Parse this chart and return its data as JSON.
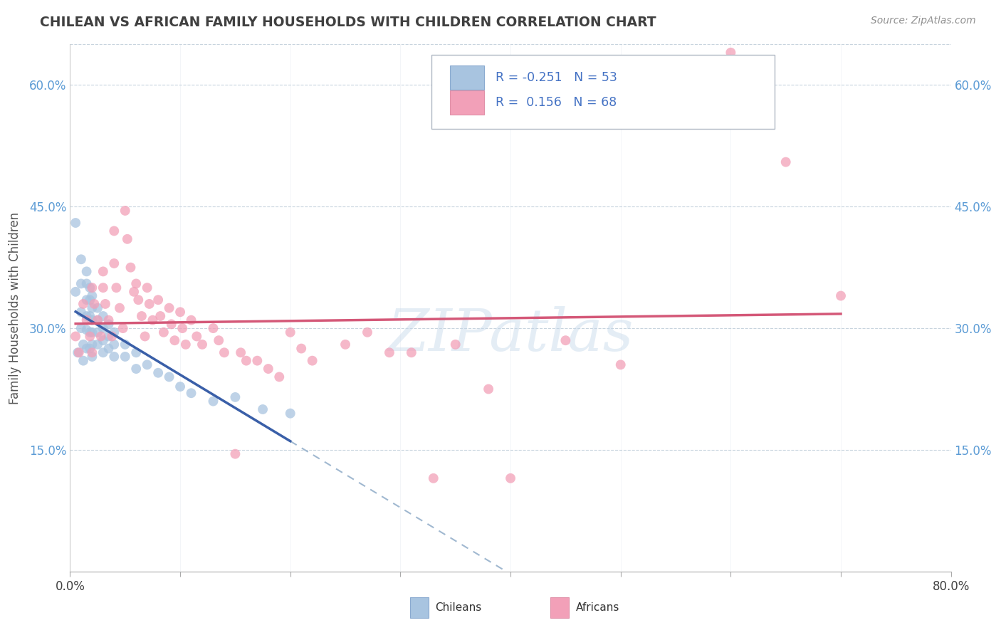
{
  "title": "CHILEAN VS AFRICAN FAMILY HOUSEHOLDS WITH CHILDREN CORRELATION CHART",
  "source": "Source: ZipAtlas.com",
  "ylabel": "Family Households with Children",
  "xlim": [
    0.0,
    0.8
  ],
  "ylim": [
    0.0,
    0.65
  ],
  "ytick_positions": [
    0.15,
    0.3,
    0.45,
    0.6
  ],
  "ytick_labels": [
    "15.0%",
    "30.0%",
    "45.0%",
    "60.0%"
  ],
  "watermark": "ZIPatlas",
  "chilean_color": "#a8c4e0",
  "african_color": "#f2a0b8",
  "chilean_line_color": "#3a5fa8",
  "african_line_color": "#d45878",
  "dashed_line_color": "#a0b8d0",
  "background_color": "#ffffff",
  "grid_color": "#c8d4de",
  "title_color": "#404040",
  "source_color": "#909090",
  "scatter_alpha": 0.75,
  "scatter_size": 100,
  "chilean_x": [
    0.005,
    0.005,
    0.007,
    0.01,
    0.01,
    0.01,
    0.01,
    0.012,
    0.012,
    0.015,
    0.015,
    0.015,
    0.015,
    0.015,
    0.015,
    0.018,
    0.018,
    0.018,
    0.018,
    0.018,
    0.02,
    0.02,
    0.02,
    0.02,
    0.02,
    0.02,
    0.025,
    0.025,
    0.025,
    0.025,
    0.03,
    0.03,
    0.03,
    0.03,
    0.035,
    0.035,
    0.035,
    0.04,
    0.04,
    0.04,
    0.05,
    0.05,
    0.06,
    0.06,
    0.07,
    0.08,
    0.09,
    0.1,
    0.11,
    0.13,
    0.15,
    0.175,
    0.2
  ],
  "chilean_y": [
    0.43,
    0.345,
    0.27,
    0.385,
    0.355,
    0.32,
    0.3,
    0.28,
    0.26,
    0.37,
    0.355,
    0.335,
    0.315,
    0.298,
    0.275,
    0.35,
    0.335,
    0.315,
    0.295,
    0.275,
    0.34,
    0.325,
    0.31,
    0.295,
    0.28,
    0.265,
    0.325,
    0.31,
    0.295,
    0.28,
    0.315,
    0.3,
    0.285,
    0.27,
    0.305,
    0.29,
    0.275,
    0.295,
    0.28,
    0.265,
    0.28,
    0.265,
    0.27,
    0.25,
    0.255,
    0.245,
    0.24,
    0.228,
    0.22,
    0.21,
    0.215,
    0.2,
    0.195
  ],
  "african_x": [
    0.005,
    0.008,
    0.012,
    0.015,
    0.018,
    0.02,
    0.02,
    0.022,
    0.025,
    0.028,
    0.03,
    0.03,
    0.032,
    0.035,
    0.038,
    0.04,
    0.04,
    0.042,
    0.045,
    0.048,
    0.05,
    0.052,
    0.055,
    0.058,
    0.06,
    0.062,
    0.065,
    0.068,
    0.07,
    0.072,
    0.075,
    0.08,
    0.082,
    0.085,
    0.09,
    0.092,
    0.095,
    0.1,
    0.102,
    0.105,
    0.11,
    0.115,
    0.12,
    0.13,
    0.135,
    0.14,
    0.15,
    0.155,
    0.16,
    0.17,
    0.18,
    0.19,
    0.2,
    0.21,
    0.22,
    0.25,
    0.27,
    0.29,
    0.31,
    0.33,
    0.35,
    0.38,
    0.4,
    0.45,
    0.5,
    0.6,
    0.65,
    0.7
  ],
  "african_y": [
    0.29,
    0.27,
    0.33,
    0.31,
    0.29,
    0.27,
    0.35,
    0.33,
    0.31,
    0.29,
    0.37,
    0.35,
    0.33,
    0.31,
    0.29,
    0.42,
    0.38,
    0.35,
    0.325,
    0.3,
    0.445,
    0.41,
    0.375,
    0.345,
    0.355,
    0.335,
    0.315,
    0.29,
    0.35,
    0.33,
    0.31,
    0.335,
    0.315,
    0.295,
    0.325,
    0.305,
    0.285,
    0.32,
    0.3,
    0.28,
    0.31,
    0.29,
    0.28,
    0.3,
    0.285,
    0.27,
    0.145,
    0.27,
    0.26,
    0.26,
    0.25,
    0.24,
    0.295,
    0.275,
    0.26,
    0.28,
    0.295,
    0.27,
    0.27,
    0.115,
    0.28,
    0.225,
    0.115,
    0.285,
    0.255,
    0.64,
    0.505,
    0.34
  ]
}
